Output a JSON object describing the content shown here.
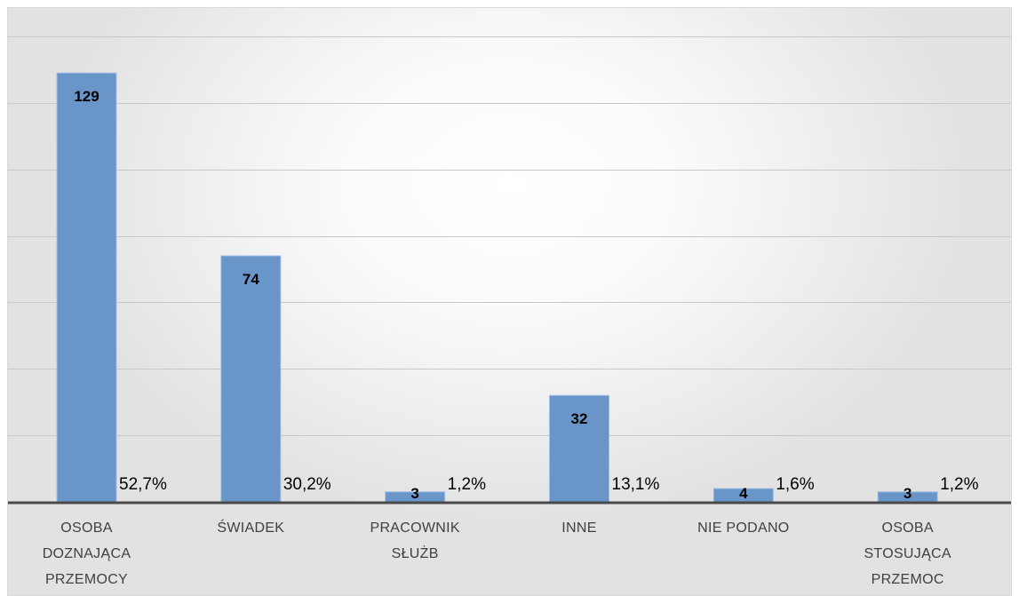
{
  "chart_data": {
    "type": "bar",
    "categories": [
      [
        "OSOBA",
        "DOZNAJĄCA",
        "PRZEMOCY"
      ],
      [
        "ŚWIADEK"
      ],
      [
        "PRACOWNIK",
        "SŁUŻB"
      ],
      [
        "INNE"
      ],
      [
        "NIE PODANO"
      ],
      [
        "OSOBA",
        "STOSUJĄCA",
        "PRZEMOC"
      ]
    ],
    "values": [
      129,
      74,
      3,
      32,
      4,
      3
    ],
    "value_labels": [
      "129",
      "74",
      "3",
      "32",
      "4",
      "3"
    ],
    "percent_labels": [
      "52,7%",
      "30,2%",
      "1,2%",
      "13,1%",
      "1,6%",
      "1,2%"
    ],
    "ylim": [
      0,
      140
    ],
    "grid": true,
    "bar_color": "#6a95c9"
  }
}
